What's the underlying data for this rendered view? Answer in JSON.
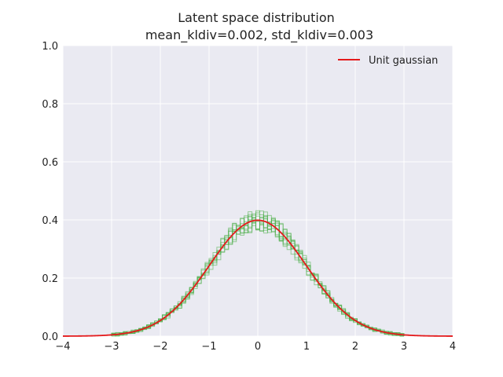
{
  "chart_data": {
    "type": "line",
    "title": "Latent space distribution",
    "subtitle": "mean_kldiv=0.002, std_kldiv=0.003",
    "xlabel": "",
    "ylabel": "",
    "xlim": [
      -4,
      4
    ],
    "ylim": [
      0,
      1.0
    ],
    "xticks": [
      "−4",
      "−3",
      "−2",
      "−1",
      "0",
      "1",
      "2",
      "3",
      "4"
    ],
    "yticks": [
      "0.0",
      "0.2",
      "0.4",
      "0.6",
      "0.8",
      "1.0"
    ],
    "grid": true,
    "legend_position": "top-right",
    "series": [
      {
        "name": "Unit gaussian",
        "kind": "line",
        "color": "#e41a1c",
        "function": "standard normal pdf",
        "mean": 0,
        "std": 1
      },
      {
        "kind": "step-histograms",
        "color": "#4daf4a",
        "count": 10,
        "bin_width": 0.08,
        "x_range": [
          -3.0,
          3.0
        ],
        "description_peak_density": 0.46
      }
    ],
    "colors": {
      "plot_background": "#eaeaf2",
      "grid": "#ffffff",
      "gaussian": "#e41a1c",
      "histogram": "#4daf4a"
    }
  }
}
